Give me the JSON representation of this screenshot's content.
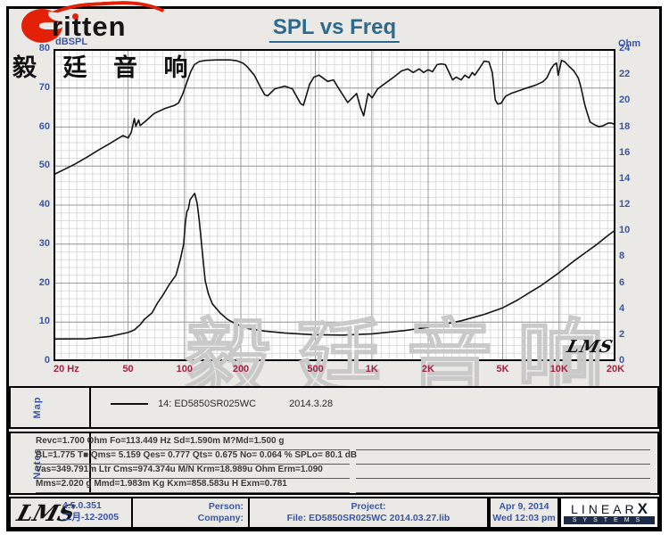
{
  "brand": {
    "logo_text": "ritten",
    "logo_cjk": "毅 廷 音 响"
  },
  "title": "SPL vs Freq",
  "chart": {
    "left_axis_label": "dBSPL",
    "right_axis_label": "Ohm",
    "left_ticks": [
      80,
      70,
      60,
      50,
      40,
      30,
      20,
      10,
      0
    ],
    "right_ticks": [
      24,
      22,
      20,
      18,
      16,
      14,
      12,
      10,
      8,
      6,
      4,
      2,
      0
    ],
    "x_ticks": [
      {
        "value": 20,
        "label": "20 Hz"
      },
      {
        "value": 50,
        "label": "50"
      },
      {
        "value": 100,
        "label": "100"
      },
      {
        "value": 200,
        "label": "200"
      },
      {
        "value": 500,
        "label": "500"
      },
      {
        "value": 1000,
        "label": "1K"
      },
      {
        "value": 2000,
        "label": "2K"
      },
      {
        "value": 5000,
        "label": "5K"
      },
      {
        "value": 10000,
        "label": "10K"
      },
      {
        "value": 20000,
        "label": "20K"
      }
    ],
    "watermark": "毅廷音响",
    "plot_mark": "LMS"
  },
  "chart_data": {
    "type": "line",
    "title": "SPL vs Freq",
    "x_scale": "log",
    "x_range": [
      20,
      20000
    ],
    "x_unit": "Hz",
    "left_axis": {
      "label": "dBSPL",
      "range": [
        0,
        80
      ],
      "tick_step": 10
    },
    "right_axis": {
      "label": "Ohm",
      "range": [
        0,
        24
      ],
      "tick_step": 2
    },
    "grid": true,
    "legend": "14: ED5850SR025WC  2014.3.28",
    "series": [
      {
        "name": "SPL (14: ED5850SR025WC 2014.3.28)",
        "axis": "left",
        "unit": "dBSPL",
        "points": [
          [
            20,
            47.8
          ],
          [
            23,
            49.2
          ],
          [
            26,
            50.5
          ],
          [
            30,
            52.2
          ],
          [
            35,
            54.2
          ],
          [
            40,
            55.8
          ],
          [
            44,
            57.0
          ],
          [
            47,
            57.8
          ],
          [
            50,
            57.2
          ],
          [
            52,
            58.6
          ],
          [
            54,
            62.2
          ],
          [
            55,
            60.2
          ],
          [
            57,
            61.8
          ],
          [
            58,
            60.4
          ],
          [
            62,
            61.5
          ],
          [
            69,
            63.5
          ],
          [
            79,
            64.8
          ],
          [
            88,
            65.5
          ],
          [
            93,
            66.2
          ],
          [
            98,
            68.5
          ],
          [
            103,
            71.5
          ],
          [
            108,
            74.2
          ],
          [
            113,
            76.0
          ],
          [
            120,
            76.8
          ],
          [
            130,
            77.1
          ],
          [
            150,
            77.2
          ],
          [
            175,
            77.2
          ],
          [
            190,
            77.0
          ],
          [
            205,
            76.4
          ],
          [
            216,
            75.5
          ],
          [
            236,
            73.3
          ],
          [
            254,
            70.3
          ],
          [
            268,
            68.3
          ],
          [
            278,
            68.0
          ],
          [
            304,
            69.8
          ],
          [
            343,
            70.5
          ],
          [
            377,
            69.8
          ],
          [
            417,
            66.0
          ],
          [
            432,
            65.6
          ],
          [
            466,
            71.0
          ],
          [
            491,
            72.8
          ],
          [
            524,
            73.3
          ],
          [
            581,
            71.7
          ],
          [
            625,
            72.1
          ],
          [
            660,
            70.2
          ],
          [
            744,
            66.3
          ],
          [
            830,
            68.6
          ],
          [
            870,
            65.0
          ],
          [
            905,
            62.9
          ],
          [
            956,
            68.6
          ],
          [
            1005,
            67.5
          ],
          [
            1076,
            69.8
          ],
          [
            1156,
            70.9
          ],
          [
            1310,
            72.8
          ],
          [
            1443,
            74.4
          ],
          [
            1558,
            74.9
          ],
          [
            1663,
            74.0
          ],
          [
            1790,
            74.9
          ],
          [
            1890,
            74.0
          ],
          [
            2000,
            74.7
          ],
          [
            2110,
            74.2
          ],
          [
            2230,
            76.0
          ],
          [
            2350,
            76.2
          ],
          [
            2470,
            76.0
          ],
          [
            2700,
            72.1
          ],
          [
            2820,
            72.8
          ],
          [
            3000,
            72.1
          ],
          [
            3140,
            73.3
          ],
          [
            3300,
            72.6
          ],
          [
            3440,
            74.0
          ],
          [
            3550,
            73.3
          ],
          [
            3760,
            75.1
          ],
          [
            3980,
            76.9
          ],
          [
            4220,
            76.7
          ],
          [
            4400,
            74.0
          ],
          [
            4560,
            67.0
          ],
          [
            4700,
            65.9
          ],
          [
            4900,
            66.1
          ],
          [
            5180,
            67.9
          ],
          [
            5520,
            68.6
          ],
          [
            6100,
            69.3
          ],
          [
            6690,
            70.0
          ],
          [
            7450,
            70.7
          ],
          [
            8170,
            71.6
          ],
          [
            8600,
            72.6
          ],
          [
            9050,
            74.9
          ],
          [
            9400,
            76.0
          ],
          [
            9690,
            76.4
          ],
          [
            9890,
            73.3
          ],
          [
            10300,
            77.1
          ],
          [
            10730,
            76.7
          ],
          [
            11340,
            75.5
          ],
          [
            11980,
            74.4
          ],
          [
            12660,
            72.6
          ],
          [
            13080,
            70.2
          ],
          [
            13690,
            65.9
          ],
          [
            14170,
            63.4
          ],
          [
            14630,
            61.3
          ],
          [
            15460,
            60.6
          ],
          [
            16340,
            60.1
          ],
          [
            17270,
            60.4
          ],
          [
            18260,
            61.0
          ],
          [
            19080,
            61.0
          ],
          [
            19950,
            60.6
          ]
        ]
      },
      {
        "name": "Impedance",
        "axis": "right",
        "unit": "Ohm",
        "points": [
          [
            20,
            1.7
          ],
          [
            30,
            1.72
          ],
          [
            40,
            1.9
          ],
          [
            50,
            2.2
          ],
          [
            54,
            2.4
          ],
          [
            58,
            2.8
          ],
          [
            61,
            3.2
          ],
          [
            67,
            3.7
          ],
          [
            72,
            4.5
          ],
          [
            77,
            5.1
          ],
          [
            83,
            5.9
          ],
          [
            90,
            6.6
          ],
          [
            95,
            7.8
          ],
          [
            99,
            9.0
          ],
          [
            101,
            10.6
          ],
          [
            103,
            11.5
          ],
          [
            105,
            11.7
          ],
          [
            107,
            12.4
          ],
          [
            112,
            12.8
          ],
          [
            113.5,
            12.9
          ],
          [
            117,
            12.1
          ],
          [
            120,
            10.8
          ],
          [
            124,
            8.7
          ],
          [
            129,
            6.2
          ],
          [
            134,
            5.2
          ],
          [
            141,
            4.4
          ],
          [
            155,
            3.7
          ],
          [
            170,
            3.2
          ],
          [
            189,
            2.85
          ],
          [
            219,
            2.5
          ],
          [
            268,
            2.31
          ],
          [
            342,
            2.17
          ],
          [
            480,
            2.04
          ],
          [
            700,
            2.0
          ],
          [
            1000,
            2.1
          ],
          [
            1500,
            2.35
          ],
          [
            2000,
            2.6
          ],
          [
            3000,
            3.1
          ],
          [
            4000,
            3.6
          ],
          [
            5000,
            4.1
          ],
          [
            6000,
            4.7
          ],
          [
            7000,
            5.3
          ],
          [
            8000,
            5.8
          ],
          [
            10000,
            6.8
          ],
          [
            12000,
            7.7
          ],
          [
            14000,
            8.4
          ],
          [
            16000,
            9.0
          ],
          [
            18000,
            9.6
          ],
          [
            20000,
            10.1
          ]
        ]
      }
    ]
  },
  "map": {
    "label": "Map",
    "legend_name": "14: ED5850SR025WC",
    "legend_date": "2014.3.28"
  },
  "notes": {
    "label": "Notes",
    "lines": [
      "Revc=1.700 Ohm  Fo=113.449 Hz  Sd=1.590m M?Md=1.500 g",
      "BL=1.775 T■  Qms= 5.159  Qes= 0.777  Qts= 0.675  No= 0.064 %  SPLo= 80.1 dB",
      "Vas=349.791m Ltr  Cms=974.374u M/N  Krm=18.989u Ohm  Erm=1.090",
      "Mms=2.020 g  Mmd=1.983m Kg  Kxm=858.583u H  Exm=0.781"
    ]
  },
  "footer": {
    "lms_logo": "LMS",
    "version": "4.5.0.351",
    "version_date": "二月-12-2005",
    "person_label": "Person:",
    "company_label": "Company:",
    "project_label": "Project:",
    "file_label": "File: ED5850SR025WC  2014.03.27.lib",
    "date": "Apr  9, 2014",
    "time": "Wed 12:03 pm",
    "linearx_main": "LINEAR",
    "linearx_x": "X",
    "linearx_sub": "SYSTEMS"
  }
}
